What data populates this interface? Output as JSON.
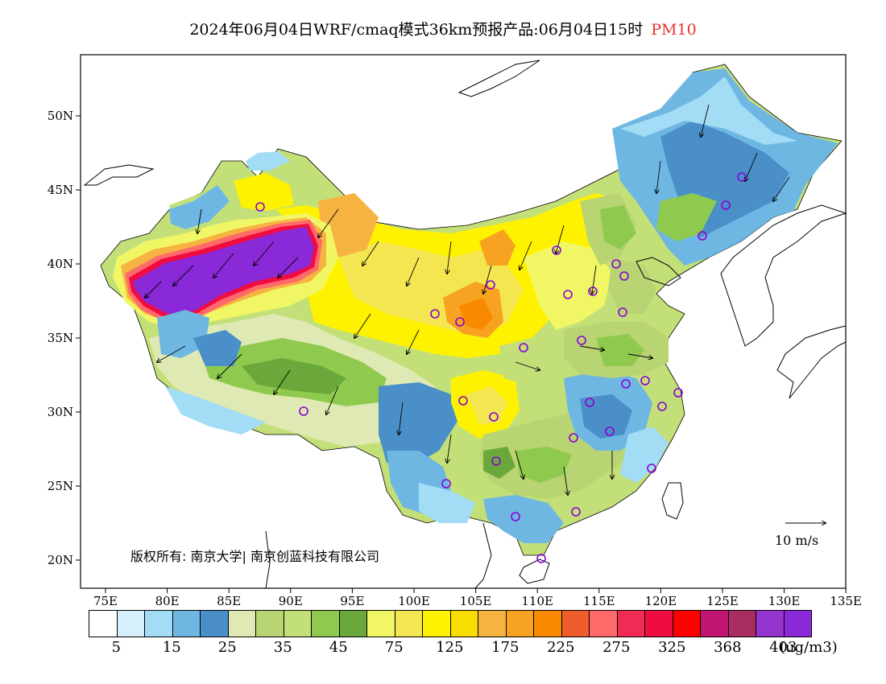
{
  "title": {
    "main": "2024年06月04日WRF/cmaq模式36km预报产品:06月04日15时",
    "variable": "PM10"
  },
  "map": {
    "lat_labels": [
      "50N",
      "45N",
      "40N",
      "35N",
      "30N",
      "25N",
      "20N"
    ],
    "lon_labels": [
      "75E",
      "80E",
      "85E",
      "90E",
      "95E",
      "100E",
      "105E",
      "110E",
      "115E",
      "120E",
      "125E",
      "130E",
      "135E"
    ],
    "copyright": "版权所有: 南京大学| 南京创蓝科技有限公司",
    "wind_reference": "10 m/s",
    "station_marker_color": "#8a00d4"
  },
  "legend": {
    "colors": [
      "#ffffff",
      "#d6f0fb",
      "#a3dcf5",
      "#6fb7e3",
      "#4a8fc8",
      "#dfe9b4",
      "#b9d473",
      "#c3df78",
      "#8fca4e",
      "#6aa83b",
      "#f1f764",
      "#f3e651",
      "#fff200",
      "#f9dc00",
      "#f6b342",
      "#f7a321",
      "#f98a00",
      "#ef5c2d",
      "#fe6a6a",
      "#f02c55",
      "#ee0c41",
      "#fe0000",
      "#c21572",
      "#aa2d62",
      "#9435cf",
      "#8a29d8"
    ],
    "labels": [
      "5",
      "15",
      "25",
      "35",
      "45",
      "75",
      "125",
      "175",
      "225",
      "275",
      "325",
      "368",
      "403"
    ],
    "unit": "(ug/m3)"
  }
}
